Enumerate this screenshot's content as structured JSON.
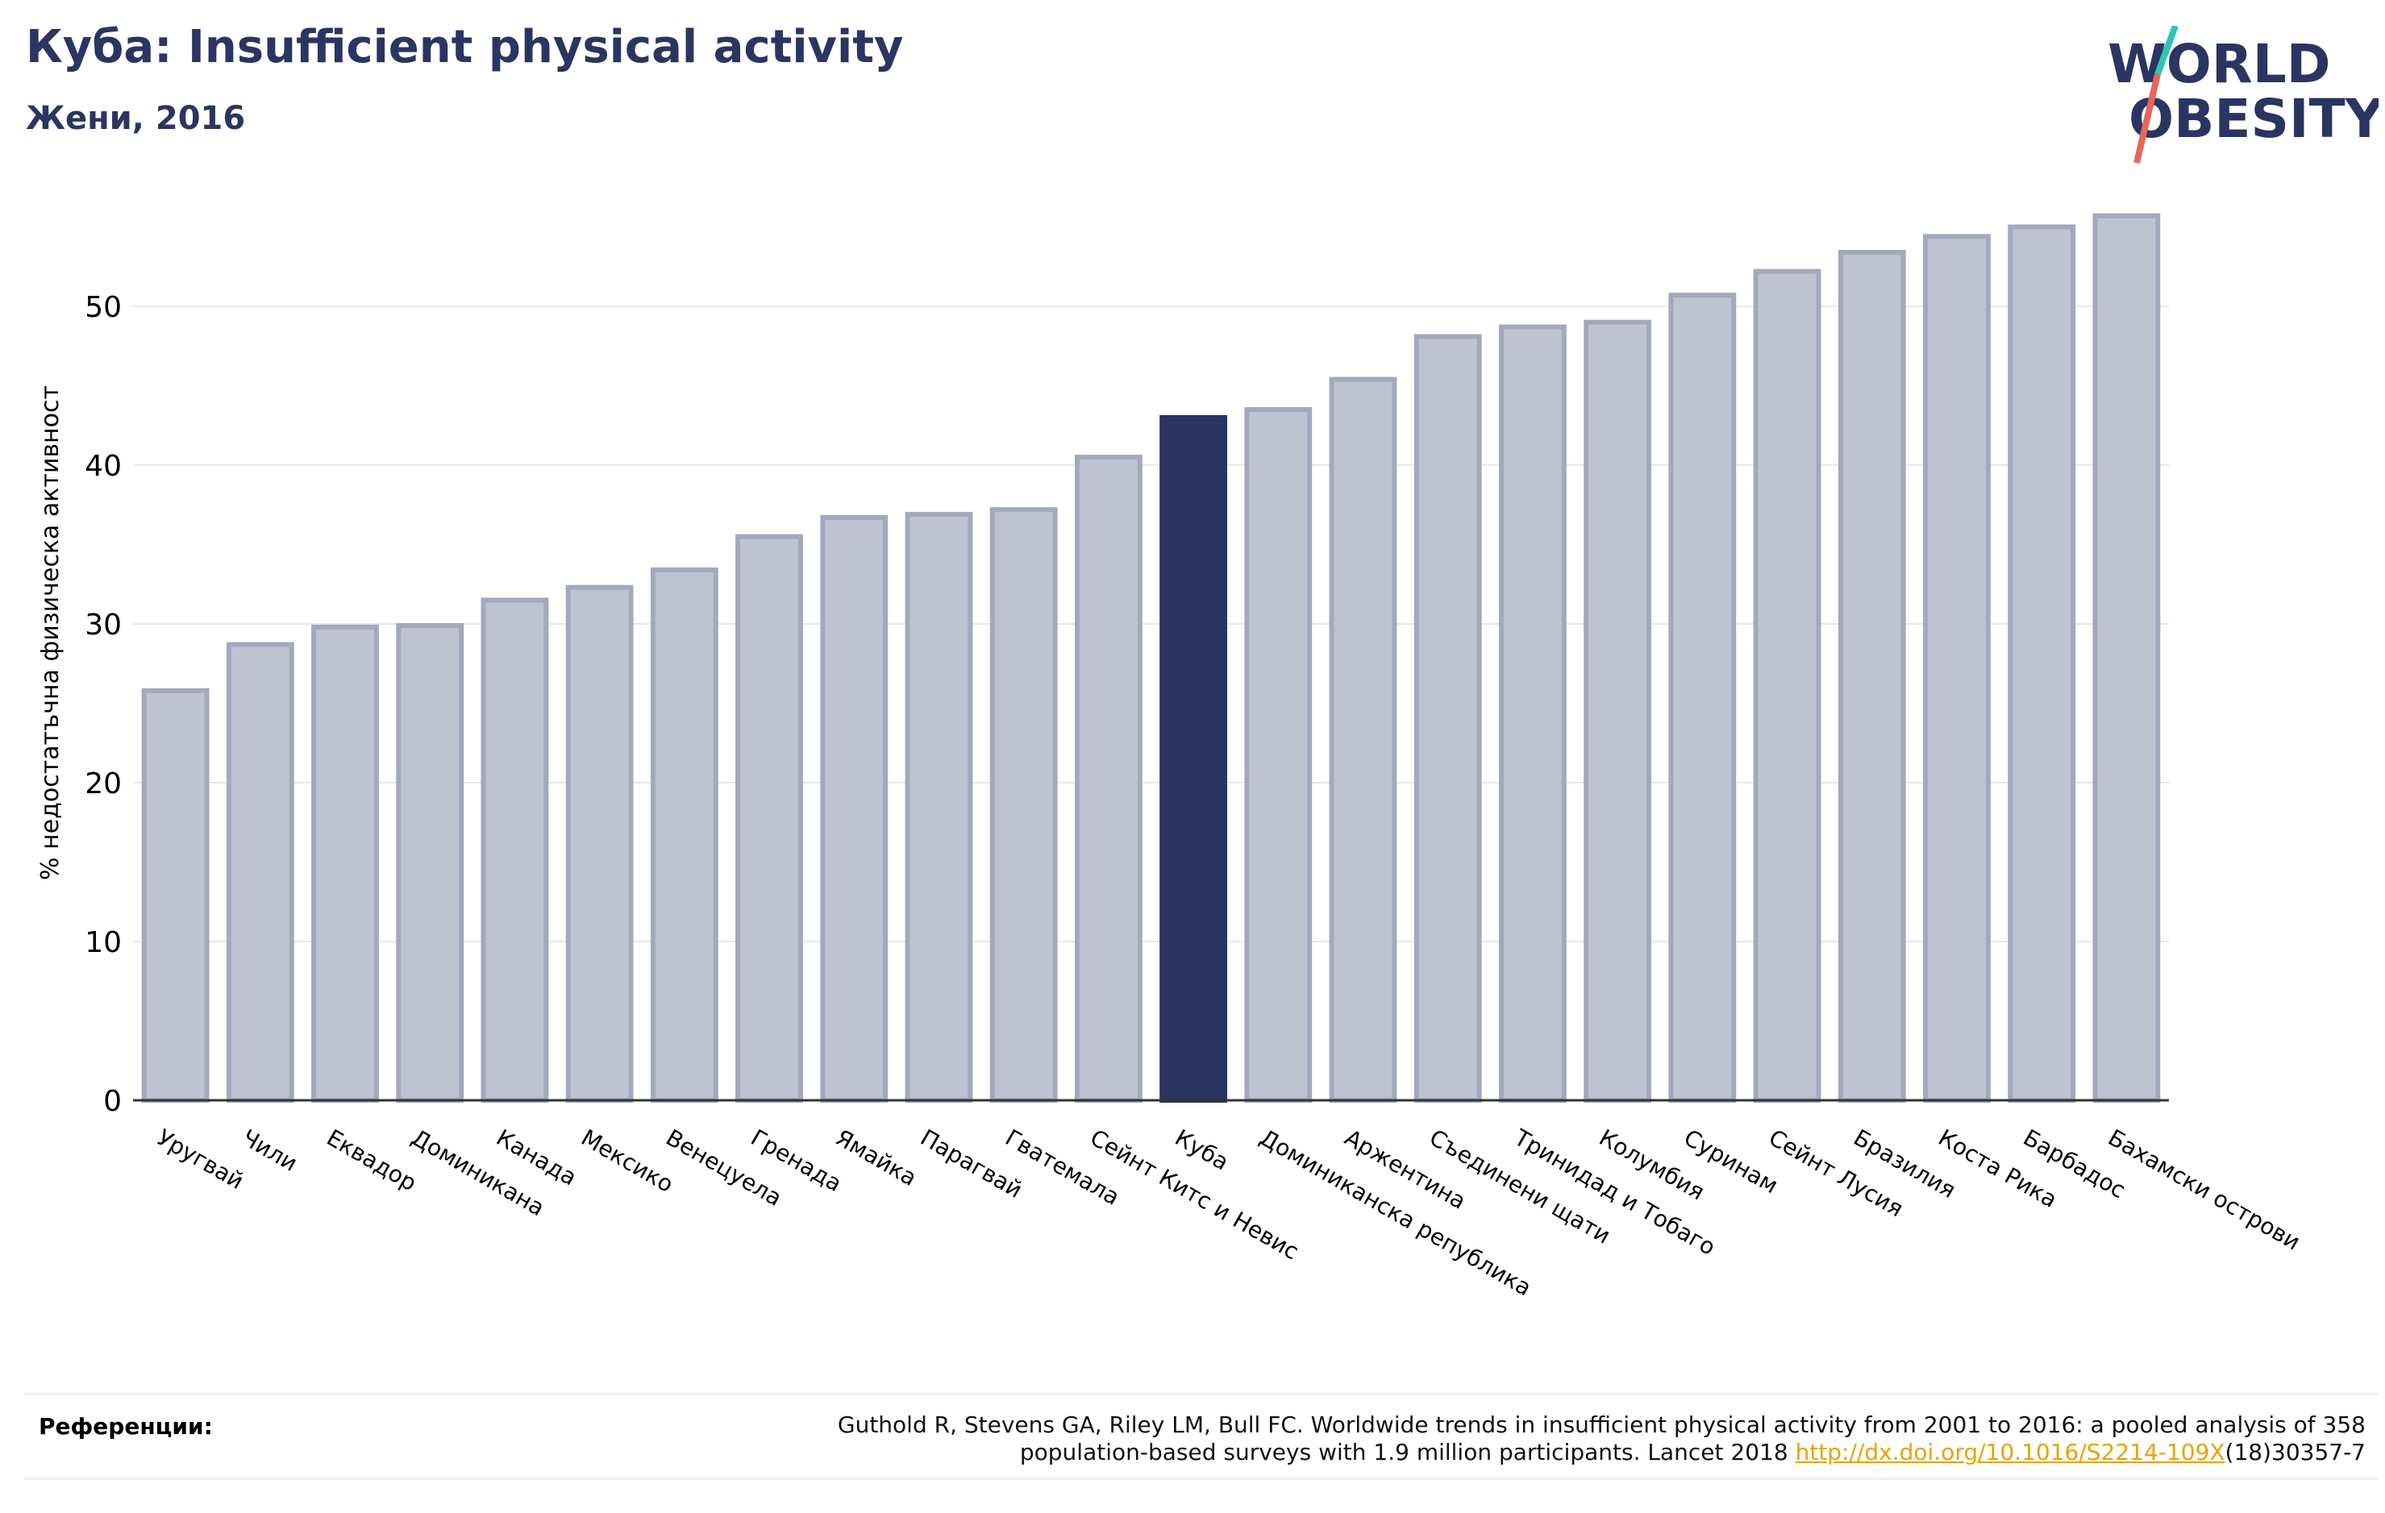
{
  "header": {
    "title": "Куба: Insufficient physical activity",
    "subtitle": "Жени, 2016"
  },
  "logo": {
    "line1": "WORLD",
    "line2": "OBESITY",
    "text_color": "#2a3561",
    "slash_colors": [
      "#2ec4b6",
      "#e8665a"
    ]
  },
  "chart_data": {
    "type": "bar",
    "title": "Куба: Insufficient physical activity",
    "subtitle": "Жени, 2016",
    "xlabel": "",
    "ylabel": "% недостатъчна физическа активност",
    "ylim": [
      0,
      57
    ],
    "yticks": [
      0,
      10,
      20,
      30,
      40,
      50
    ],
    "grid": true,
    "highlight": "Куба",
    "colors": {
      "bar": "#bfc2d0",
      "bar_edge": "#a3a8bd",
      "highlight": "#2a3561"
    },
    "categories": [
      "Уругвай",
      "Чили",
      "Еквадор",
      "Доминикана",
      "Канада",
      "Мексико",
      "Венецуела",
      "Гренада",
      "Ямайка",
      "Парагвай",
      "Гватемала",
      "Сейнт Китс и Невис",
      "Куба",
      "Доминиканска република",
      "Аржентина",
      "Съединени щати",
      "Тринидад и Тобаго",
      "Колумбия",
      "Суринам",
      "Сейнт Лусия",
      "Бразилия",
      "Коста Рика",
      "Барбадос",
      "Бахамски острови"
    ],
    "values": [
      25.8,
      28.7,
      29.8,
      29.9,
      31.5,
      32.3,
      33.4,
      35.5,
      36.7,
      36.9,
      37.2,
      40.5,
      43.0,
      43.5,
      45.4,
      48.1,
      48.7,
      49.0,
      50.7,
      52.2,
      53.4,
      54.4,
      55.0,
      55.7
    ]
  },
  "references": {
    "label": "Референции:",
    "line1": "Guthold R, Stevens GA, Riley LM, Bull FC. Worldwide trends in insufficient physical activity from 2001 to 2016: a pooled analysis of 358",
    "line2_prefix": "population-based surveys with 1.9 million participants. Lancet 2018 ",
    "link_text": "http://dx.doi.org/10.1016/S2214-109X",
    "line2_suffix": "(18)30357-7"
  }
}
